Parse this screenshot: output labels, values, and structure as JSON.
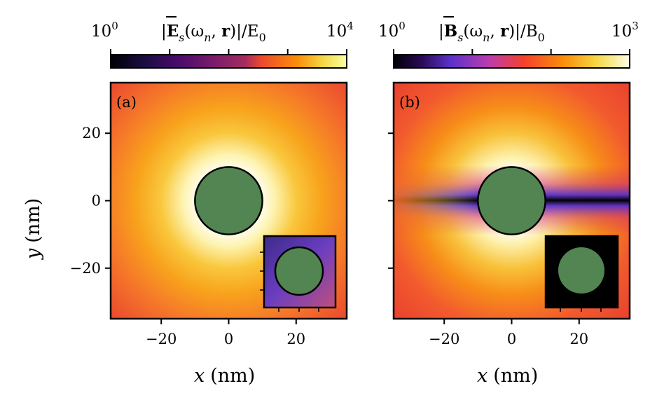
{
  "chart_data": [
    {
      "type": "heatmap",
      "panel_label": "(a)",
      "colorbar": {
        "label": "|Ē_s(ω_n, r)|/E_0",
        "label_parts": {
          "pre": "|",
          "bold": "E",
          "sub": "s",
          "mid": "(ω",
          "sub2": "n",
          "mid2": ", ",
          "bold2": "r",
          "post": ")|/E",
          "sub3": "0"
        },
        "min_label": {
          "base": "10",
          "exp": "0"
        },
        "max_label": {
          "base": "10",
          "exp": "4"
        },
        "min": 1,
        "max": 10000,
        "scale": "log",
        "colormap": "inferno-like"
      },
      "xlabel": {
        "var": "x",
        "unit": "(nm)"
      },
      "ylabel": {
        "var": "y",
        "unit": "(nm)"
      },
      "xlim": [
        -35,
        35
      ],
      "ylim": [
        -35,
        35
      ],
      "xticks": [
        -20,
        0,
        20
      ],
      "xtick_labels": [
        "−20",
        "0",
        "20"
      ],
      "yticks": [
        -20,
        0,
        20
      ],
      "ytick_labels": [
        "−20",
        "0",
        "20"
      ],
      "sphere": {
        "center": [
          0,
          0
        ],
        "radius": 10,
        "color": "#528552"
      },
      "field_pattern": "radial",
      "inset": {
        "field_pattern": "radial-dipole",
        "background": "#6644aa"
      }
    },
    {
      "type": "heatmap",
      "panel_label": "(b)",
      "colorbar": {
        "label": "|B̄_s(ω_n, r)|/B_0",
        "label_parts": {
          "pre": "|",
          "bold": "B",
          "sub": "s",
          "mid": "(ω",
          "sub2": "n",
          "mid2": ", ",
          "bold2": "r",
          "post": ")|/B",
          "sub3": "0"
        },
        "min_label": {
          "base": "10",
          "exp": "0"
        },
        "max_label": {
          "base": "10",
          "exp": "3"
        },
        "min": 1,
        "max": 1000,
        "scale": "log",
        "colormap": "inferno-like"
      },
      "xlabel": {
        "var": "x",
        "unit": "(nm)"
      },
      "xlim": [
        -35,
        35
      ],
      "ylim": [
        -35,
        35
      ],
      "xticks": [
        -20,
        0,
        20
      ],
      "xtick_labels": [
        "−20",
        "0",
        "20"
      ],
      "yticks": [
        -20,
        0,
        20
      ],
      "sphere": {
        "center": [
          0,
          0
        ],
        "radius": 10,
        "color": "#528552"
      },
      "field_pattern": "magnetic-dipole",
      "inset": {
        "field_pattern": "black",
        "background": "#000000"
      }
    }
  ],
  "colors": {
    "sphere": "#528552",
    "frame": "#000000"
  }
}
